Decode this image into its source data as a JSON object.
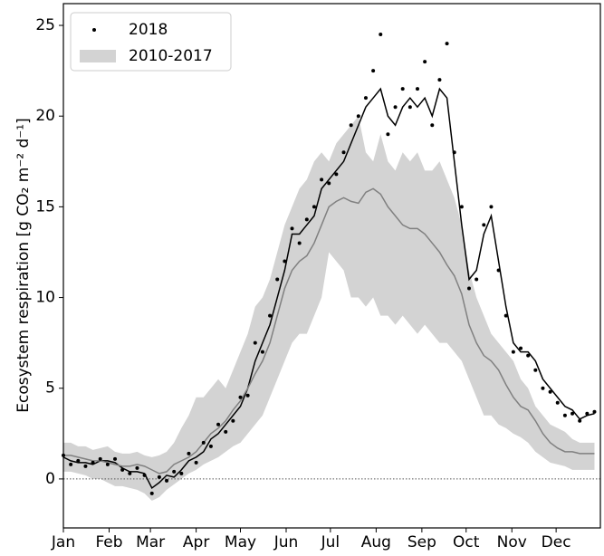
{
  "chart_data": {
    "type": "line",
    "y_label": "Ecosystem respiration [g CO₂ m⁻² d⁻¹]",
    "x": [
      1,
      6,
      11,
      16,
      21,
      26,
      31,
      36,
      41,
      46,
      51,
      56,
      61,
      66,
      71,
      76,
      81,
      86,
      91,
      96,
      101,
      106,
      111,
      116,
      121,
      126,
      131,
      136,
      141,
      146,
      151,
      156,
      161,
      166,
      171,
      176,
      181,
      186,
      191,
      196,
      201,
      206,
      211,
      216,
      221,
      226,
      231,
      236,
      241,
      246,
      251,
      256,
      261,
      266,
      271,
      276,
      281,
      286,
      291,
      296,
      301,
      306,
      311,
      316,
      321,
      326,
      331,
      336,
      341,
      346,
      351,
      356,
      361
    ],
    "xlim": [
      1,
      365
    ],
    "xticks": [
      {
        "value": 1,
        "label": "Jan"
      },
      {
        "value": 32,
        "label": "Feb"
      },
      {
        "value": 60,
        "label": "Mar"
      },
      {
        "value": 91,
        "label": "Apr"
      },
      {
        "value": 121,
        "label": "May"
      },
      {
        "value": 152,
        "label": "Jun"
      },
      {
        "value": 182,
        "label": "Jul"
      },
      {
        "value": 213,
        "label": "Aug"
      },
      {
        "value": 244,
        "label": "Sep"
      },
      {
        "value": 274,
        "label": "Oct"
      },
      {
        "value": 305,
        "label": "Nov"
      },
      {
        "value": 335,
        "label": "Dec"
      }
    ],
    "ylim": [
      -2.7,
      26.2
    ],
    "yticks": [
      0,
      5,
      10,
      15,
      20,
      25
    ],
    "reference_line": 0,
    "legend": "upper left",
    "band": {
      "name": "2010-2017",
      "color": "#d3d3d3",
      "lower": [
        0.4,
        0.4,
        0.3,
        0.2,
        0.0,
        0.0,
        -0.2,
        -0.4,
        -0.4,
        -0.5,
        -0.6,
        -0.8,
        -1.2,
        -1.0,
        -0.6,
        -0.3,
        0.0,
        0.3,
        0.5,
        0.8,
        1.0,
        1.2,
        1.5,
        1.8,
        2.0,
        2.5,
        3.0,
        3.5,
        4.5,
        5.5,
        6.5,
        7.5,
        8.0,
        8.0,
        9.0,
        10.0,
        12.5,
        12.0,
        11.5,
        10.0,
        10.0,
        9.5,
        10.0,
        9.0,
        9.0,
        8.5,
        9.0,
        8.5,
        8.0,
        8.5,
        8.0,
        7.5,
        7.5,
        7.0,
        6.5,
        5.5,
        4.5,
        3.5,
        3.5,
        3.0,
        2.8,
        2.5,
        2.3,
        2.0,
        1.5,
        1.2,
        0.9,
        0.8,
        0.7,
        0.5,
        0.5,
        0.5,
        0.5
      ],
      "upper": [
        2.0,
        2.0,
        1.8,
        1.8,
        1.6,
        1.7,
        1.8,
        1.5,
        1.4,
        1.4,
        1.5,
        1.3,
        1.2,
        1.3,
        1.5,
        2.0,
        2.8,
        3.5,
        4.5,
        4.5,
        5.0,
        5.5,
        5.0,
        6.0,
        7.0,
        8.0,
        9.5,
        10.0,
        11.0,
        12.5,
        14.0,
        15.0,
        16.0,
        16.5,
        17.5,
        18.0,
        17.5,
        18.5,
        19.0,
        19.5,
        20.0,
        18.0,
        17.5,
        19.0,
        17.5,
        17.0,
        18.0,
        17.5,
        18.0,
        17.0,
        17.0,
        17.5,
        16.5,
        15.5,
        14.0,
        11.5,
        10.0,
        9.0,
        8.0,
        7.5,
        7.0,
        6.5,
        5.5,
        5.0,
        4.0,
        3.5,
        3.0,
        2.8,
        2.6,
        2.2,
        2.0,
        2.0,
        2.0
      ]
    },
    "series": [
      {
        "name": "2018",
        "style": "points",
        "color": "#000000",
        "values": [
          1.3,
          0.8,
          1.0,
          0.7,
          0.9,
          1.1,
          0.8,
          1.1,
          0.5,
          0.3,
          0.6,
          0.2,
          -0.8,
          0.1,
          -0.1,
          0.4,
          0.3,
          1.4,
          0.9,
          2.0,
          1.8,
          3.0,
          2.6,
          3.2,
          4.5,
          4.6,
          7.5,
          7.0,
          9.0,
          11.0,
          12.0,
          13.8,
          13.0,
          14.3,
          15.0,
          16.5,
          16.3,
          16.8,
          18.0,
          19.5,
          20.0,
          21.0,
          22.5,
          24.5,
          19.0,
          20.5,
          21.5,
          20.5,
          21.5,
          23.0,
          19.5,
          22.0,
          24.0,
          18.0,
          15.0,
          10.5,
          11.0,
          14.0,
          15.0,
          11.5,
          9.0,
          7.0,
          7.2,
          6.8,
          6.0,
          5.0,
          4.8,
          4.2,
          3.5,
          3.6,
          3.2,
          3.6,
          3.7
        ]
      },
      {
        "style": "line",
        "color": "#000000",
        "values": [
          1.2,
          1.0,
          0.9,
          0.9,
          0.8,
          1.0,
          1.0,
          0.9,
          0.6,
          0.4,
          0.4,
          0.3,
          -0.5,
          -0.2,
          0.2,
          0.1,
          0.5,
          1.0,
          1.2,
          1.5,
          2.2,
          2.5,
          3.0,
          3.5,
          4.0,
          5.0,
          6.5,
          7.5,
          8.5,
          10.0,
          11.5,
          13.5,
          13.5,
          14.0,
          14.5,
          16.0,
          16.5,
          17.0,
          17.5,
          18.5,
          19.5,
          20.5,
          21.0,
          21.5,
          20.0,
          19.5,
          20.5,
          21.0,
          20.5,
          21.0,
          20.0,
          21.5,
          21.0,
          17.5,
          14.0,
          11.0,
          11.5,
          13.5,
          14.5,
          12.0,
          9.5,
          7.5,
          7.0,
          7.0,
          6.5,
          5.5,
          5.0,
          4.5,
          4.0,
          3.8,
          3.3,
          3.5,
          3.6
        ]
      },
      {
        "style": "line",
        "color": "#808080",
        "values": [
          1.3,
          1.3,
          1.2,
          1.1,
          1.0,
          1.0,
          0.9,
          0.8,
          0.7,
          0.7,
          0.8,
          0.7,
          0.5,
          0.3,
          0.4,
          0.8,
          1.0,
          1.2,
          1.5,
          2.0,
          2.5,
          2.8,
          3.2,
          3.8,
          4.3,
          5.0,
          5.8,
          6.5,
          7.5,
          9.0,
          10.5,
          11.5,
          12.0,
          12.3,
          13.0,
          14.0,
          15.0,
          15.3,
          15.5,
          15.3,
          15.2,
          15.8,
          16.0,
          15.7,
          15.0,
          14.5,
          14.0,
          13.8,
          13.8,
          13.5,
          13.0,
          12.5,
          11.8,
          11.2,
          10.2,
          8.5,
          7.5,
          6.8,
          6.5,
          6.0,
          5.2,
          4.5,
          4.0,
          3.8,
          3.2,
          2.5,
          2.0,
          1.7,
          1.5,
          1.5,
          1.4,
          1.4,
          1.4
        ]
      }
    ]
  }
}
